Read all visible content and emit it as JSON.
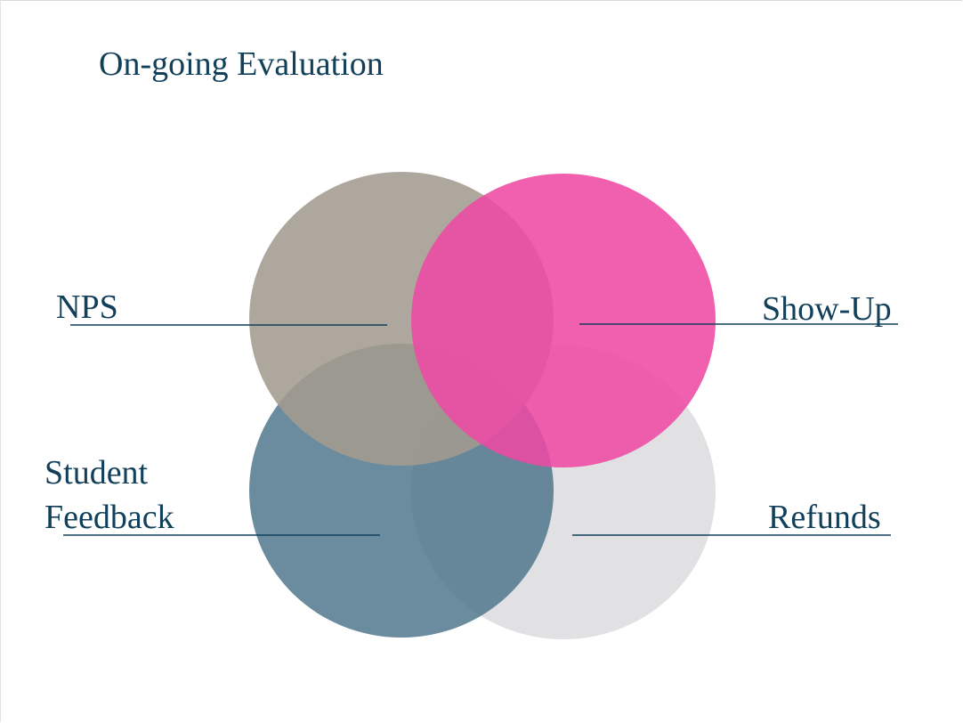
{
  "slide": {
    "title": "On-going Evaluation"
  },
  "venn": {
    "circles": [
      {
        "id": "nps",
        "color": "#a79f95"
      },
      {
        "id": "show-up",
        "color": "#ee4da6"
      },
      {
        "id": "student-feedback",
        "color": "#4b7289"
      },
      {
        "id": "refunds",
        "color": "#dcdcde"
      }
    ],
    "labels": {
      "nps": "NPS",
      "show_up": "Show-Up",
      "student": "Student",
      "feedback": "Feedback",
      "refunds": "Refunds"
    },
    "line_color": "#12405a"
  }
}
